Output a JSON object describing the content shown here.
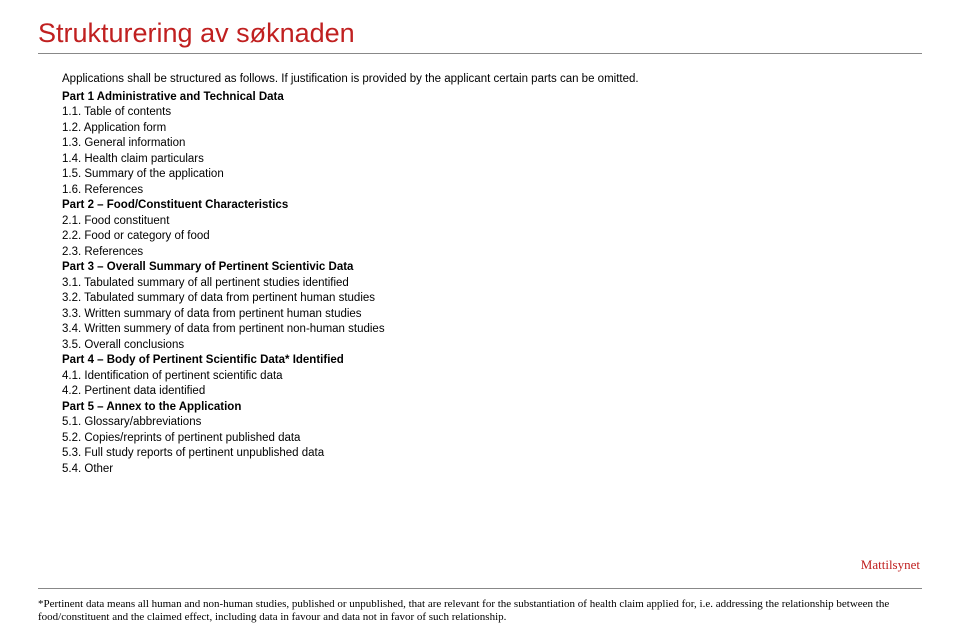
{
  "title": "Strukturering av søknaden",
  "title_color": "#c02020",
  "title_fontsize": 27,
  "body_fontsize": 11.5,
  "intro": "Applications shall be structured as follows. If justification is provided by the applicant certain parts can be omitted.",
  "parts": [
    {
      "head": "Part 1 Administrative and Technical Data",
      "items": [
        "1.1. Table of contents",
        "1.2. Application form",
        "1.3. General information",
        "1.4. Health claim particulars",
        "1.5. Summary of the application",
        "1.6. References"
      ]
    },
    {
      "head": "Part 2 – Food/Constituent Characteristics",
      "items": [
        "2.1. Food constituent",
        "2.2. Food or category of food",
        "2.3. References"
      ]
    },
    {
      "head": "Part 3 – Overall Summary of Pertinent Scientivic Data",
      "items": [
        "3.1. Tabulated summary of all pertinent studies identified",
        "3.2. Tabulated summary of data from pertinent human studies",
        "3.3. Written summary of data from pertinent human studies",
        "3.4. Written summery of data from pertinent non-human studies",
        "3.5. Overall conclusions"
      ]
    },
    {
      "head": "Part 4 – Body of Pertinent Scientific Data* Identified",
      "items": [
        "4.1. Identification of pertinent scientific data",
        "4.2. Pertinent data identified"
      ]
    },
    {
      "head": "Part 5 – Annex to the Application",
      "items": [
        "5.1. Glossary/abbreviations",
        "5.2. Copies/reprints of pertinent published data",
        "5.3. Full study reports of pertinent unpublished data",
        "5.4. Other"
      ]
    }
  ],
  "logo_text": "Mattilsynet",
  "logo_color": "#c02020",
  "footnote": "*Pertinent data means all human and non-human studies, published or unpublished, that are relevant for the substantiation of health claim applied for, i.e. addressing the relationship between the food/constituent and the claimed effect, including data in favour and data not in favor of such relationship.",
  "rule_color": "#888888",
  "background_color": "#ffffff"
}
